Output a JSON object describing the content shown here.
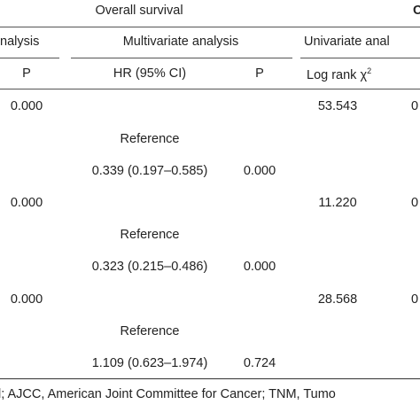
{
  "header": {
    "group_overall": "Overall survival",
    "group_cut": "C",
    "sub_univariate_left": "nalysis",
    "sub_multivariate": "Multivariate analysis",
    "sub_univariate_right": "Univariate anal"
  },
  "columns": {
    "p_left": "P",
    "hr": "HR (95% CI)",
    "p_mid": "P",
    "logrank": "Log rank χ",
    "logrank_sup": "2"
  },
  "rows": [
    {
      "p_left": "0.000",
      "hr": "",
      "p_mid": "",
      "logrank": "53.543",
      "cut": "0"
    },
    {
      "p_left": "",
      "hr": "Reference",
      "p_mid": "",
      "logrank": "",
      "cut": ""
    },
    {
      "p_left": "",
      "hr": "0.339 (0.197–0.585)",
      "p_mid": "0.000",
      "logrank": "",
      "cut": ""
    },
    {
      "p_left": "0.000",
      "hr": "",
      "p_mid": "",
      "logrank": "11.220",
      "cut": "0"
    },
    {
      "p_left": "",
      "hr": "Reference",
      "p_mid": "",
      "logrank": "",
      "cut": ""
    },
    {
      "p_left": "",
      "hr": "0.323 (0.215–0.486)",
      "p_mid": "0.000",
      "logrank": "",
      "cut": ""
    },
    {
      "p_left": "0.000",
      "hr": "",
      "p_mid": "",
      "logrank": "28.568",
      "cut": "0"
    },
    {
      "p_left": "",
      "hr": "Reference",
      "p_mid": "",
      "logrank": "",
      "cut": ""
    },
    {
      "p_left": "",
      "hr": "1.109 (0.623–1.974)",
      "p_mid": "0.724",
      "logrank": "",
      "cut": ""
    }
  ],
  "footnote": "l; AJCC, American Joint Committee for Cancer; TNM, Tumo"
}
